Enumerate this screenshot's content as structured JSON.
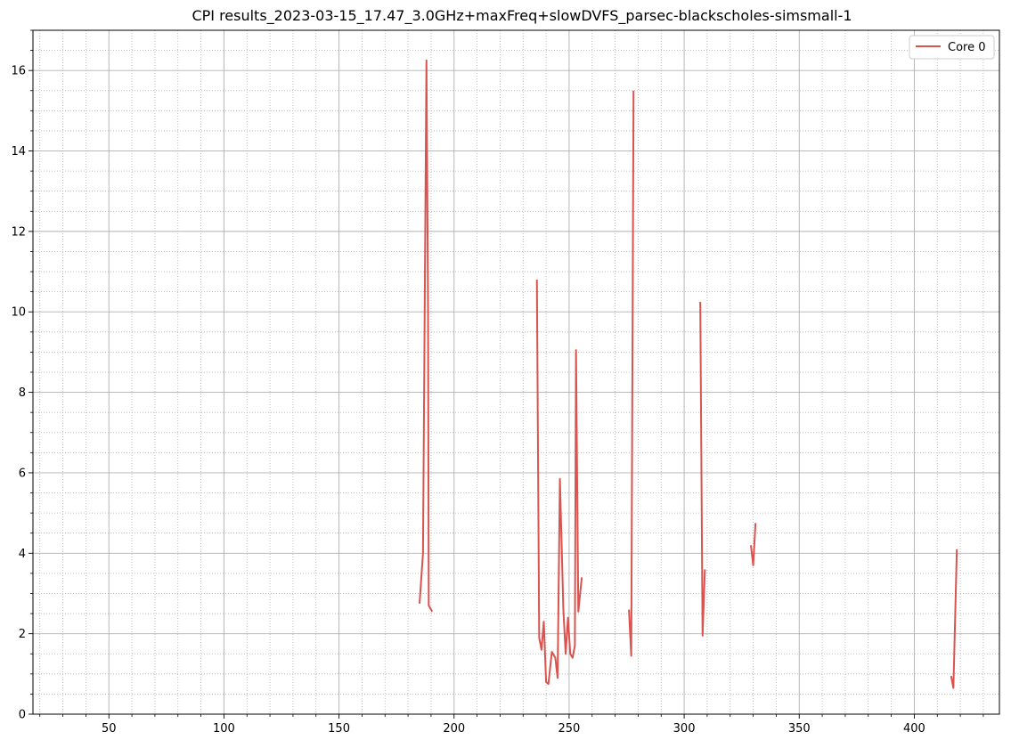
{
  "chart_data": {
    "type": "line",
    "title": "CPI results_2023-03-15_17.47_3.0GHz+maxFreq+slowDVFS_parsec-blackscholes-simsmall-1",
    "xlabel": "",
    "ylabel": "",
    "xlim": [
      17,
      437
    ],
    "ylim": [
      0,
      17
    ],
    "x_major_ticks": [
      50,
      100,
      150,
      200,
      250,
      300,
      350,
      400
    ],
    "x_minor_step": 10,
    "y_major_ticks": [
      0,
      2,
      4,
      6,
      8,
      10,
      12,
      14,
      16
    ],
    "y_minor_step": 0.5,
    "grid": {
      "major": true,
      "minor": true,
      "minor_style": "dotted"
    },
    "legend": {
      "position": "top-right",
      "entries": [
        "Core 0"
      ]
    },
    "series": [
      {
        "name": "Core 0",
        "color": "#d9534f",
        "segments": [
          [
            [
              185,
              2.75
            ],
            [
              186.5,
              4.0
            ],
            [
              188,
              16.25
            ],
            [
              188.7,
              10.0
            ],
            [
              189,
              2.7
            ],
            [
              190.5,
              2.55
            ]
          ],
          [
            [
              236,
              10.8
            ],
            [
              237,
              1.9
            ],
            [
              238,
              1.6
            ],
            [
              239,
              2.3
            ],
            [
              240,
              0.8
            ],
            [
              241,
              0.75
            ],
            [
              242.5,
              1.55
            ],
            [
              244,
              1.4
            ],
            [
              245,
              0.9
            ],
            [
              246,
              5.85
            ],
            [
              247.5,
              2.6
            ],
            [
              248.5,
              1.5
            ],
            [
              249.5,
              2.4
            ],
            [
              250.5,
              1.5
            ],
            [
              251.5,
              1.4
            ],
            [
              252.5,
              1.7
            ],
            [
              253,
              9.05
            ],
            [
              254,
              2.55
            ],
            [
              255.5,
              3.4
            ]
          ],
          [
            [
              276,
              2.6
            ],
            [
              277,
              1.45
            ],
            [
              278,
              15.5
            ]
          ],
          [
            [
              307,
              10.25
            ],
            [
              308,
              1.95
            ],
            [
              309,
              3.6
            ]
          ],
          [
            [
              329,
              4.2
            ],
            [
              330,
              3.7
            ],
            [
              331,
              4.75
            ]
          ],
          [
            [
              416,
              0.95
            ],
            [
              417,
              0.65
            ],
            [
              418.5,
              4.1
            ]
          ]
        ]
      }
    ]
  }
}
